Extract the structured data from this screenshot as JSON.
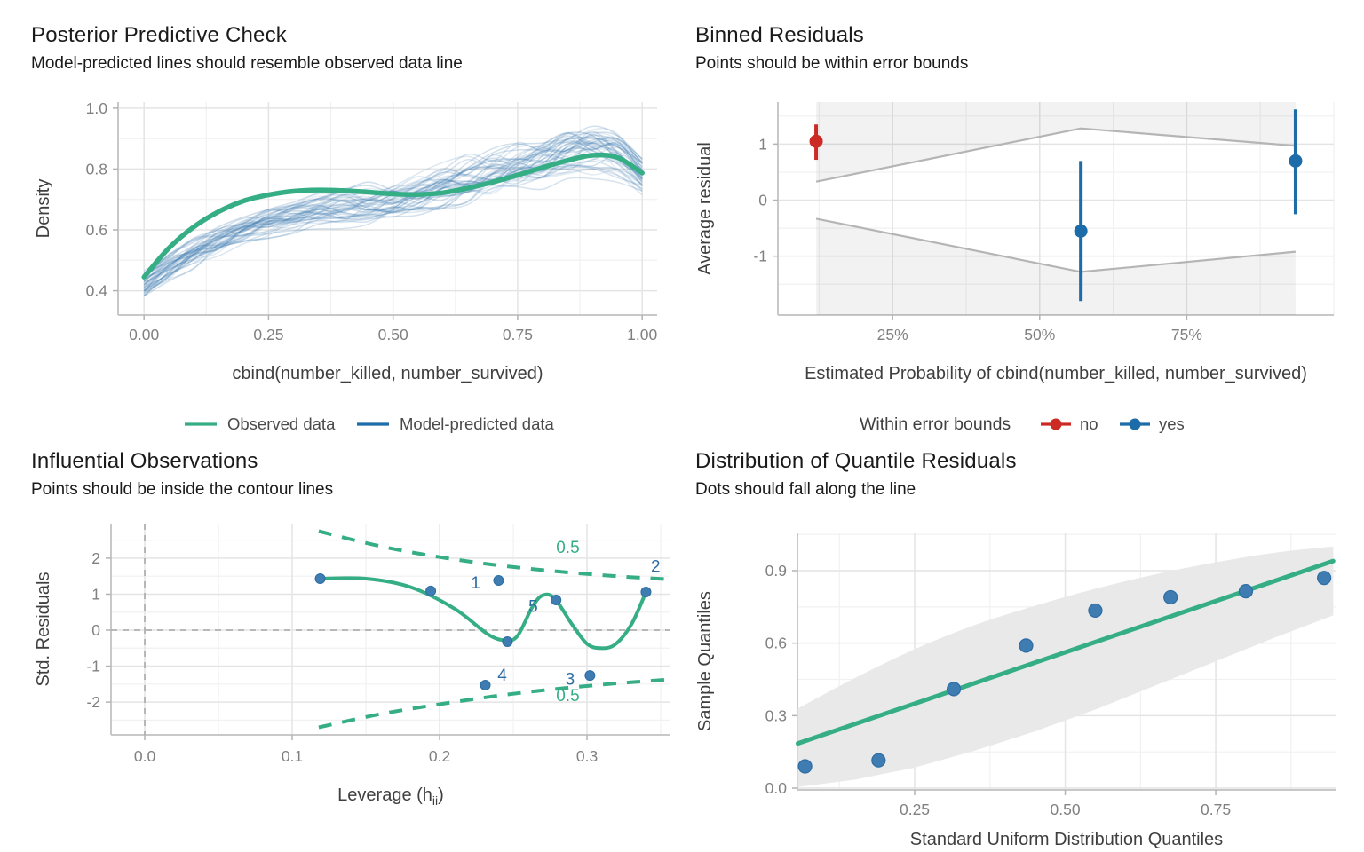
{
  "page": {
    "background": "#ffffff"
  },
  "colors": {
    "green": "#35ae85",
    "blue": "#1b6ca8",
    "sim_blue": "#447fb2",
    "dot_fill": "#3e7cb1",
    "dot_stroke": "#2d6da3",
    "red": "#cc2b25",
    "bound_line": "#b5b5b5",
    "shade": "rgba(0,0,0,0.05)",
    "band": "#e9e9e9",
    "grid_major": "#e4e4e4",
    "grid_minor": "#f1f1f1",
    "axis_line": "#c8c8c8",
    "tick": "#b3b3b3",
    "tick_text": "#808080",
    "axis_title_text": "#3f3f3f",
    "legend_text": "#4a4a4a",
    "ref_dash": "#b0b0b0",
    "label_blue": "#2e6da4"
  },
  "chart_data": [
    {
      "id": "posterior-predictive-check",
      "type": "line",
      "title": "Posterior Predictive Check",
      "subtitle": "Model-predicted lines should resemble observed data line",
      "xlabel": "cbind(number_killed, number_survived)",
      "ylabel": "Density",
      "xlim": [
        -0.052,
        1.03
      ],
      "ylim": [
        0.32,
        1.02
      ],
      "xticks": [
        0,
        0.25,
        0.5,
        0.75,
        1.0
      ],
      "xtick_labels": [
        "0.00",
        "0.25",
        "0.50",
        "0.75",
        "1.00"
      ],
      "xgrid_minor": [
        0.125,
        0.375,
        0.625,
        0.875
      ],
      "yticks": [
        0.4,
        0.6,
        0.8,
        1.0
      ],
      "ytick_labels": [
        "0.4",
        "0.6",
        "0.8",
        "1.0"
      ],
      "ygrid_minor": [
        0.5,
        0.7,
        0.9
      ],
      "legend": {
        "items": [
          {
            "label": "Observed data",
            "color_key": "green"
          },
          {
            "label": "Model-predicted data",
            "color_key": "blue"
          }
        ]
      },
      "x_knots": [
        0,
        0.05,
        0.1,
        0.15,
        0.2,
        0.25,
        0.3,
        0.35,
        0.4,
        0.45,
        0.5,
        0.55,
        0.6,
        0.65,
        0.7,
        0.75,
        0.8,
        0.85,
        0.9,
        0.95,
        1.0
      ],
      "observed_y": [
        0.445,
        0.54,
        0.61,
        0.66,
        0.695,
        0.715,
        0.727,
        0.731,
        0.729,
        0.724,
        0.718,
        0.716,
        0.722,
        0.737,
        0.757,
        0.78,
        0.805,
        0.828,
        0.845,
        0.838,
        0.787
      ],
      "predicted_mean_y": [
        0.42,
        0.475,
        0.525,
        0.565,
        0.598,
        0.622,
        0.641,
        0.655,
        0.667,
        0.678,
        0.692,
        0.71,
        0.733,
        0.758,
        0.785,
        0.812,
        0.837,
        0.862,
        0.872,
        0.85,
        0.78
      ],
      "predicted_spread": [
        0.045,
        0.048,
        0.05,
        0.05,
        0.05,
        0.052,
        0.054,
        0.057,
        0.06,
        0.062,
        0.065,
        0.068,
        0.072,
        0.077,
        0.082,
        0.087,
        0.092,
        0.095,
        0.093,
        0.078,
        0.055
      ],
      "n_sim_lines": 46
    },
    {
      "id": "binned-residuals",
      "type": "pointrange",
      "title": "Binned Residuals",
      "subtitle": "Points should be within error bounds",
      "xlabel": "Estimated Probability of cbind(number_killed, number_survived)",
      "ylabel": "Average residual",
      "xlim": [
        5.5,
        100
      ],
      "ylim": [
        -2.05,
        1.75
      ],
      "xticks": [
        25,
        50,
        75
      ],
      "xtick_labels": [
        "25%",
        "50%",
        "75%"
      ],
      "xgrid_minor": [
        12.5,
        37.5,
        62.5,
        87.5,
        100
      ],
      "yticks": [
        -1,
        0,
        1
      ],
      "ytick_labels": [
        "-1",
        "0",
        "1"
      ],
      "ygrid_minor": [
        -1.5,
        -0.5,
        0.5,
        1.5
      ],
      "points": [
        {
          "x": 12,
          "y": 1.05,
          "ci_low": 0.72,
          "ci_high": 1.35,
          "within_bounds": "no"
        },
        {
          "x": 57,
          "y": -0.55,
          "ci_low": -1.8,
          "ci_high": 0.7,
          "within_bounds": "yes"
        },
        {
          "x": 93.5,
          "y": 0.7,
          "ci_low": -0.25,
          "ci_high": 1.62,
          "within_bounds": "yes"
        }
      ],
      "bound_upper": [
        [
          12,
          0.33
        ],
        [
          57,
          1.28
        ],
        [
          93.5,
          0.97
        ]
      ],
      "bound_lower": [
        [
          12,
          -0.33
        ],
        [
          57,
          -1.28
        ],
        [
          93.5,
          -0.92
        ]
      ],
      "legend": {
        "title": "Within error bounds",
        "items": [
          {
            "label": "no",
            "color_key": "red"
          },
          {
            "label": "yes",
            "color_key": "blue"
          }
        ]
      }
    },
    {
      "id": "influential-observations",
      "type": "scatter",
      "title": "Influential Observations",
      "subtitle": "Points should be inside the contour lines",
      "xlabel_prefix": "Leverage (h",
      "xlabel_subscript": "ii",
      "xlabel_suffix": ")",
      "ylabel": "Std. Residuals",
      "xlim": [
        -0.0229,
        0.3566
      ],
      "ylim": [
        -2.91,
        2.96
      ],
      "xticks": [
        0,
        0.1,
        0.2,
        0.3
      ],
      "xtick_labels": [
        "0.0",
        "0.1",
        "0.2",
        "0.3"
      ],
      "xgrid_minor": [
        0.05,
        0.15,
        0.25,
        0.35
      ],
      "yticks": [
        -2,
        -1,
        0,
        1,
        2
      ],
      "ytick_labels": [
        "-2",
        "-1",
        "0",
        "1",
        "2"
      ],
      "ygrid_minor": [
        -2.5,
        -1.5,
        -0.5,
        0.5,
        1.5,
        2.5
      ],
      "points": [
        {
          "x": 0.119,
          "y": 1.43,
          "label": ""
        },
        {
          "x": 0.194,
          "y": 1.09,
          "label": ""
        },
        {
          "x": 0.24,
          "y": 1.38,
          "label": "1"
        },
        {
          "x": 0.246,
          "y": -0.32,
          "label": ""
        },
        {
          "x": 0.279,
          "y": 0.84,
          "label": "5"
        },
        {
          "x": 0.231,
          "y": -1.53,
          "label": "4"
        },
        {
          "x": 0.302,
          "y": -1.26,
          "label": "3"
        },
        {
          "x": 0.34,
          "y": 1.06,
          "label": "2"
        }
      ],
      "point_label_pos": {
        "1": [
          0.2245,
          1.16
        ],
        "5": [
          0.2635,
          0.5
        ],
        "4": [
          0.2425,
          -1.4
        ],
        "3": [
          0.2885,
          -1.52
        ],
        "2": [
          0.3465,
          1.62
        ]
      },
      "smooth_curve": [
        [
          0.119,
          1.43
        ],
        [
          0.15,
          1.43
        ],
        [
          0.18,
          1.2
        ],
        [
          0.21,
          0.6
        ],
        [
          0.233,
          -0.12
        ],
        [
          0.245,
          -0.28
        ],
        [
          0.253,
          -0.15
        ],
        [
          0.263,
          0.65
        ],
        [
          0.27,
          0.97
        ],
        [
          0.278,
          0.88
        ],
        [
          0.29,
          0.15
        ],
        [
          0.3,
          -0.38
        ],
        [
          0.309,
          -0.5
        ],
        [
          0.319,
          -0.4
        ],
        [
          0.33,
          0.15
        ],
        [
          0.34,
          1.06
        ]
      ],
      "contour_upper": [
        [
          0.118,
          2.75
        ],
        [
          0.16,
          2.33
        ],
        [
          0.2,
          2.03
        ],
        [
          0.24,
          1.8
        ],
        [
          0.28,
          1.63
        ],
        [
          0.32,
          1.5
        ],
        [
          0.356,
          1.41
        ]
      ],
      "contour_lower": [
        [
          0.118,
          -2.7
        ],
        [
          0.16,
          -2.33
        ],
        [
          0.2,
          -2.06
        ],
        [
          0.24,
          -1.82
        ],
        [
          0.28,
          -1.63
        ],
        [
          0.32,
          -1.48
        ],
        [
          0.356,
          -1.37
        ]
      ],
      "contour_label": "0.5",
      "contour_label_upper_pos": [
        0.287,
        2.14
      ],
      "contour_label_lower_pos": [
        0.287,
        -1.97
      ]
    },
    {
      "id": "quantile-residuals-qq",
      "type": "scatter",
      "title": "Distribution of Quantile Residuals",
      "subtitle": "Dots should fall along the line",
      "xlabel": "Standard Uniform Distribution Quantiles",
      "ylabel": "Sample Quantiles",
      "xlim": [
        0.0553,
        0.949
      ],
      "ylim": [
        -0.0073,
        1.058
      ],
      "xticks": [
        0.25,
        0.5,
        0.75
      ],
      "xtick_labels": [
        "0.25",
        "0.50",
        "0.75"
      ],
      "xgrid_minor": [
        0.125,
        0.375,
        0.625,
        0.875
      ],
      "yticks": [
        0,
        0.3,
        0.6,
        0.9
      ],
      "ytick_labels": [
        "0.0",
        "0.3",
        "0.6",
        "0.9"
      ],
      "ygrid_minor": [
        0.15,
        0.45,
        0.75,
        1.05
      ],
      "points": [
        {
          "x": 0.068,
          "y": 0.09
        },
        {
          "x": 0.19,
          "y": 0.115
        },
        {
          "x": 0.315,
          "y": 0.41
        },
        {
          "x": 0.435,
          "y": 0.59
        },
        {
          "x": 0.55,
          "y": 0.735
        },
        {
          "x": 0.675,
          "y": 0.79
        },
        {
          "x": 0.8,
          "y": 0.815
        },
        {
          "x": 0.93,
          "y": 0.87
        }
      ],
      "reference_line": [
        [
          0.056,
          0.185
        ],
        [
          0.945,
          0.94
        ]
      ],
      "band_upper": [
        [
          0.056,
          0.33
        ],
        [
          0.15,
          0.455
        ],
        [
          0.25,
          0.575
        ],
        [
          0.35,
          0.675
        ],
        [
          0.45,
          0.755
        ],
        [
          0.55,
          0.825
        ],
        [
          0.65,
          0.885
        ],
        [
          0.75,
          0.935
        ],
        [
          0.85,
          0.975
        ],
        [
          0.945,
          1.0
        ]
      ],
      "band_lower": [
        [
          0.056,
          0.005
        ],
        [
          0.15,
          0.035
        ],
        [
          0.25,
          0.085
        ],
        [
          0.35,
          0.155
        ],
        [
          0.45,
          0.235
        ],
        [
          0.55,
          0.325
        ],
        [
          0.65,
          0.425
        ],
        [
          0.75,
          0.525
        ],
        [
          0.85,
          0.625
        ],
        [
          0.945,
          0.715
        ]
      ]
    }
  ]
}
